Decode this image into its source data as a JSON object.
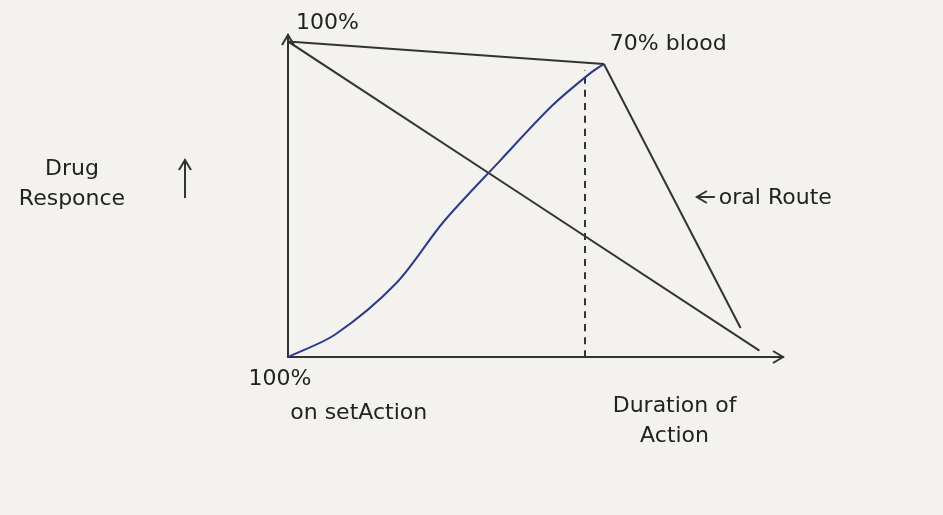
{
  "chart_data": {
    "type": "line",
    "x_label": "Duration of Action",
    "y_label": "Drug Responce",
    "xlim": [
      0,
      105
    ],
    "ylim": [
      0,
      100
    ],
    "tick_labels": false,
    "grid": false,
    "annotations": [
      "100%",
      "70% blood",
      "oral Route",
      "100%",
      "on setAction"
    ],
    "series": [
      {
        "x": [
          0,
          67
        ],
        "values": [
          98,
          91
        ],
        "color": "#333333",
        "line_style": "solid"
      },
      {
        "x": [
          0,
          10,
          23,
          33,
          45,
          56,
          64,
          67
        ],
        "values": [
          0,
          7,
          23,
          42,
          61,
          78,
          88,
          91
        ],
        "color": "#2b3a8a",
        "line_style": "solid"
      },
      {
        "x": [
          67,
          96
        ],
        "values": [
          91,
          9
        ],
        "color": "#333333",
        "line_style": "solid"
      },
      {
        "x": [
          0,
          100
        ],
        "values": [
          98,
          2
        ],
        "color": "#333333",
        "line_style": "solid"
      },
      {
        "x": [
          63,
          63
        ],
        "values": [
          0,
          89
        ],
        "color": "#333333",
        "line_style": "dashed"
      }
    ]
  }
}
